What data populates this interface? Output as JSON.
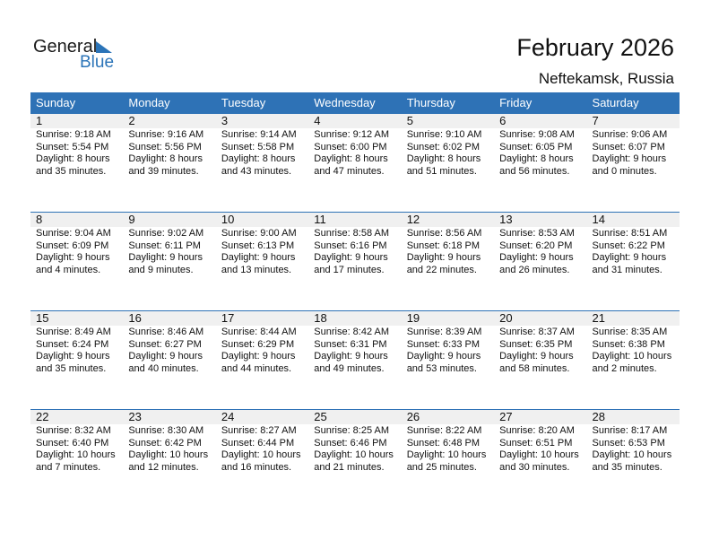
{
  "logo": {
    "text_general": "General",
    "text_blue": "Blue"
  },
  "title": "February 2026",
  "location": "Neftekamsk, Russia",
  "colors": {
    "header": "#2e72b6",
    "date_bar": "#f0f0f0",
    "brand": "#2b74b8"
  },
  "weekdays": [
    "Sunday",
    "Monday",
    "Tuesday",
    "Wednesday",
    "Thursday",
    "Friday",
    "Saturday"
  ],
  "weeks": [
    [
      {
        "day": "1",
        "sunrise": "Sunrise: 9:18 AM",
        "sunset": "Sunset: 5:54 PM",
        "daylight": "Daylight: 8 hours",
        "minutes": "and 35 minutes."
      },
      {
        "day": "2",
        "sunrise": "Sunrise: 9:16 AM",
        "sunset": "Sunset: 5:56 PM",
        "daylight": "Daylight: 8 hours",
        "minutes": "and 39 minutes."
      },
      {
        "day": "3",
        "sunrise": "Sunrise: 9:14 AM",
        "sunset": "Sunset: 5:58 PM",
        "daylight": "Daylight: 8 hours",
        "minutes": "and 43 minutes."
      },
      {
        "day": "4",
        "sunrise": "Sunrise: 9:12 AM",
        "sunset": "Sunset: 6:00 PM",
        "daylight": "Daylight: 8 hours",
        "minutes": "and 47 minutes."
      },
      {
        "day": "5",
        "sunrise": "Sunrise: 9:10 AM",
        "sunset": "Sunset: 6:02 PM",
        "daylight": "Daylight: 8 hours",
        "minutes": "and 51 minutes."
      },
      {
        "day": "6",
        "sunrise": "Sunrise: 9:08 AM",
        "sunset": "Sunset: 6:05 PM",
        "daylight": "Daylight: 8 hours",
        "minutes": "and 56 minutes."
      },
      {
        "day": "7",
        "sunrise": "Sunrise: 9:06 AM",
        "sunset": "Sunset: 6:07 PM",
        "daylight": "Daylight: 9 hours",
        "minutes": "and 0 minutes."
      }
    ],
    [
      {
        "day": "8",
        "sunrise": "Sunrise: 9:04 AM",
        "sunset": "Sunset: 6:09 PM",
        "daylight": "Daylight: 9 hours",
        "minutes": "and 4 minutes."
      },
      {
        "day": "9",
        "sunrise": "Sunrise: 9:02 AM",
        "sunset": "Sunset: 6:11 PM",
        "daylight": "Daylight: 9 hours",
        "minutes": "and 9 minutes."
      },
      {
        "day": "10",
        "sunrise": "Sunrise: 9:00 AM",
        "sunset": "Sunset: 6:13 PM",
        "daylight": "Daylight: 9 hours",
        "minutes": "and 13 minutes."
      },
      {
        "day": "11",
        "sunrise": "Sunrise: 8:58 AM",
        "sunset": "Sunset: 6:16 PM",
        "daylight": "Daylight: 9 hours",
        "minutes": "and 17 minutes."
      },
      {
        "day": "12",
        "sunrise": "Sunrise: 8:56 AM",
        "sunset": "Sunset: 6:18 PM",
        "daylight": "Daylight: 9 hours",
        "minutes": "and 22 minutes."
      },
      {
        "day": "13",
        "sunrise": "Sunrise: 8:53 AM",
        "sunset": "Sunset: 6:20 PM",
        "daylight": "Daylight: 9 hours",
        "minutes": "and 26 minutes."
      },
      {
        "day": "14",
        "sunrise": "Sunrise: 8:51 AM",
        "sunset": "Sunset: 6:22 PM",
        "daylight": "Daylight: 9 hours",
        "minutes": "and 31 minutes."
      }
    ],
    [
      {
        "day": "15",
        "sunrise": "Sunrise: 8:49 AM",
        "sunset": "Sunset: 6:24 PM",
        "daylight": "Daylight: 9 hours",
        "minutes": "and 35 minutes."
      },
      {
        "day": "16",
        "sunrise": "Sunrise: 8:46 AM",
        "sunset": "Sunset: 6:27 PM",
        "daylight": "Daylight: 9 hours",
        "minutes": "and 40 minutes."
      },
      {
        "day": "17",
        "sunrise": "Sunrise: 8:44 AM",
        "sunset": "Sunset: 6:29 PM",
        "daylight": "Daylight: 9 hours",
        "minutes": "and 44 minutes."
      },
      {
        "day": "18",
        "sunrise": "Sunrise: 8:42 AM",
        "sunset": "Sunset: 6:31 PM",
        "daylight": "Daylight: 9 hours",
        "minutes": "and 49 minutes."
      },
      {
        "day": "19",
        "sunrise": "Sunrise: 8:39 AM",
        "sunset": "Sunset: 6:33 PM",
        "daylight": "Daylight: 9 hours",
        "minutes": "and 53 minutes."
      },
      {
        "day": "20",
        "sunrise": "Sunrise: 8:37 AM",
        "sunset": "Sunset: 6:35 PM",
        "daylight": "Daylight: 9 hours",
        "minutes": "and 58 minutes."
      },
      {
        "day": "21",
        "sunrise": "Sunrise: 8:35 AM",
        "sunset": "Sunset: 6:38 PM",
        "daylight": "Daylight: 10 hours",
        "minutes": "and 2 minutes."
      }
    ],
    [
      {
        "day": "22",
        "sunrise": "Sunrise: 8:32 AM",
        "sunset": "Sunset: 6:40 PM",
        "daylight": "Daylight: 10 hours",
        "minutes": "and 7 minutes."
      },
      {
        "day": "23",
        "sunrise": "Sunrise: 8:30 AM",
        "sunset": "Sunset: 6:42 PM",
        "daylight": "Daylight: 10 hours",
        "minutes": "and 12 minutes."
      },
      {
        "day": "24",
        "sunrise": "Sunrise: 8:27 AM",
        "sunset": "Sunset: 6:44 PM",
        "daylight": "Daylight: 10 hours",
        "minutes": "and 16 minutes."
      },
      {
        "day": "25",
        "sunrise": "Sunrise: 8:25 AM",
        "sunset": "Sunset: 6:46 PM",
        "daylight": "Daylight: 10 hours",
        "minutes": "and 21 minutes."
      },
      {
        "day": "26",
        "sunrise": "Sunrise: 8:22 AM",
        "sunset": "Sunset: 6:48 PM",
        "daylight": "Daylight: 10 hours",
        "minutes": "and 25 minutes."
      },
      {
        "day": "27",
        "sunrise": "Sunrise: 8:20 AM",
        "sunset": "Sunset: 6:51 PM",
        "daylight": "Daylight: 10 hours",
        "minutes": "and 30 minutes."
      },
      {
        "day": "28",
        "sunrise": "Sunrise: 8:17 AM",
        "sunset": "Sunset: 6:53 PM",
        "daylight": "Daylight: 10 hours",
        "minutes": "and 35 minutes."
      }
    ]
  ]
}
